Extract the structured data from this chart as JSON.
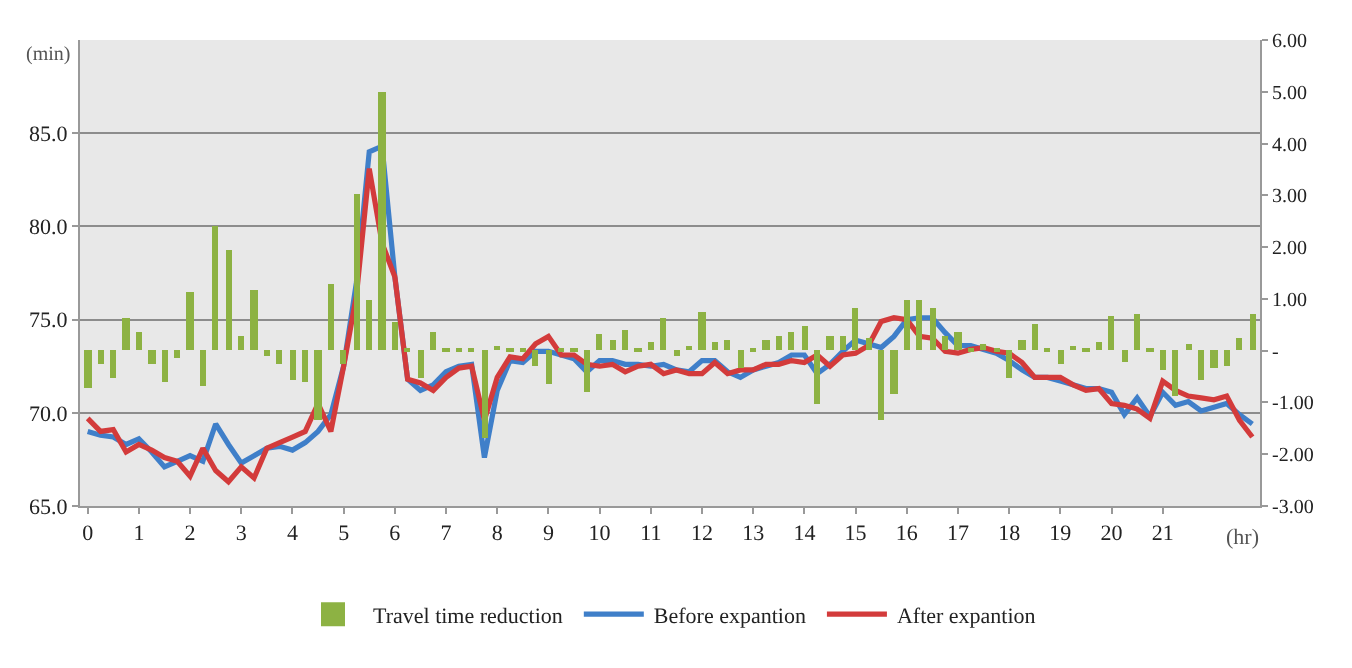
{
  "chart_data": {
    "type": "line",
    "xlabel": "(hr)",
    "ylabel": "(min)",
    "x": [
      0,
      0.25,
      0.5,
      0.75,
      1,
      1.25,
      1.5,
      1.75,
      2,
      2.25,
      2.5,
      2.75,
      3,
      3.25,
      3.5,
      3.75,
      4,
      4.25,
      4.5,
      4.75,
      5,
      5.25,
      5.5,
      5.75,
      6,
      6.25,
      6.5,
      6.75,
      7,
      7.25,
      7.5,
      7.75,
      8,
      8.25,
      8.5,
      8.75,
      9,
      9.25,
      9.5,
      9.75,
      10,
      10.25,
      10.5,
      10.75,
      11,
      11.25,
      11.5,
      11.75,
      12,
      12.25,
      12.5,
      12.75,
      13,
      13.25,
      13.5,
      13.75,
      14,
      14.25,
      14.5,
      14.75,
      15,
      15.25,
      15.5,
      15.75,
      16,
      16.25,
      16.5,
      16.75,
      17,
      17.25,
      17.5,
      17.75,
      18,
      18.25,
      18.5,
      18.75,
      19,
      19.25,
      19.5,
      19.75,
      20,
      20.25,
      20.5,
      20.75,
      21,
      21.25,
      21.5,
      21.75,
      22,
      22.25,
      22.5,
      22.75
    ],
    "series": [
      {
        "name": "Travel time reduction",
        "type": "bar",
        "axis": "y2",
        "color": "#8db243",
        "values": [
          -0.73,
          -0.25,
          -0.52,
          0.62,
          0.35,
          -0.27,
          -0.6,
          -0.14,
          1.13,
          -0.67,
          2.42,
          1.94,
          0.29,
          1.18,
          -0.09,
          -0.25,
          -0.56,
          -0.6,
          -1.33,
          1.28,
          -0.27,
          3.03,
          0.96,
          4.98,
          0.54,
          0.02,
          -0.52,
          0.37,
          0.02,
          0.02,
          0.02,
          -1.68,
          0.08,
          0.02,
          0.02,
          -0.29,
          -0.64,
          0.02,
          0.02,
          -0.79,
          0.31,
          0.21,
          0.41,
          0.02,
          0.15,
          0.62,
          -0.12,
          0.09,
          0.75,
          0.15,
          0.2,
          -0.35,
          0.06,
          0.22,
          0.29,
          0.37,
          0.49,
          -1.04,
          0.28,
          0.28,
          0.81,
          0.25,
          -1.35,
          -0.83,
          0.98,
          0.98,
          0.81,
          0.27,
          0.35,
          0.05,
          0.12,
          0.05,
          -0.52,
          0.2,
          0.52,
          0.02,
          -0.27,
          0.08,
          0.02,
          0.17,
          0.66,
          -0.23,
          0.7,
          0.02,
          -0.38,
          -0.87,
          0.12,
          -0.58,
          -0.35,
          -0.29,
          0.23,
          0.72
        ]
      },
      {
        "name": "Before expantion",
        "color": "#3f7fc9",
        "values": [
          69.0,
          68.8,
          68.7,
          68.3,
          68.6,
          67.9,
          67.1,
          67.4,
          67.7,
          67.4,
          69.4,
          68.3,
          67.3,
          67.7,
          68.1,
          68.2,
          68.0,
          68.4,
          69.0,
          69.9,
          72.5,
          77.0,
          84.0,
          84.3,
          77.3,
          71.8,
          71.2,
          71.5,
          72.2,
          72.5,
          72.6,
          67.6,
          71.2,
          72.8,
          72.7,
          73.3,
          73.3,
          73.1,
          72.9,
          72.2,
          72.8,
          72.8,
          72.6,
          72.6,
          72.5,
          72.6,
          72.3,
          72.2,
          72.8,
          72.8,
          72.2,
          71.9,
          72.3,
          72.5,
          72.7,
          73.1,
          73.1,
          72.1,
          72.6,
          73.3,
          73.9,
          73.7,
          73.5,
          74.1,
          75.0,
          75.1,
          75.1,
          74.3,
          73.6,
          73.6,
          73.4,
          73.2,
          72.8,
          72.3,
          71.9,
          71.9,
          71.7,
          71.5,
          71.3,
          71.3,
          71.1,
          69.9,
          70.8,
          69.8,
          71.1,
          70.4,
          70.6,
          70.1,
          70.3,
          70.5,
          69.9,
          69.4
        ]
      },
      {
        "name": "After expantion",
        "color": "#d33b3b",
        "values": [
          69.7,
          69.0,
          69.1,
          67.9,
          68.3,
          68.0,
          67.6,
          67.4,
          66.6,
          68.1,
          66.9,
          66.3,
          67.1,
          66.5,
          68.1,
          68.4,
          68.7,
          69.0,
          70.5,
          69.0,
          72.5,
          76.3,
          83.1,
          79.1,
          77.3,
          71.8,
          71.6,
          71.2,
          71.9,
          72.4,
          72.5,
          69.6,
          71.9,
          73.0,
          72.9,
          73.7,
          74.1,
          73.1,
          73.1,
          72.6,
          72.5,
          72.6,
          72.2,
          72.5,
          72.6,
          72.1,
          72.3,
          72.1,
          72.1,
          72.7,
          72.1,
          72.3,
          72.3,
          72.6,
          72.6,
          72.8,
          72.7,
          73.1,
          72.5,
          73.1,
          73.2,
          73.6,
          74.9,
          75.1,
          75.0,
          74.1,
          74.0,
          73.3,
          73.2,
          73.4,
          73.5,
          73.3,
          73.2,
          72.7,
          71.9,
          71.9,
          71.9,
          71.5,
          71.2,
          71.3,
          70.5,
          70.4,
          70.2,
          69.7,
          71.7,
          71.2,
          70.9,
          70.8,
          70.7,
          70.9,
          69.6,
          68.7
        ]
      }
    ],
    "xlim": [
      -0.15,
      22.9
    ],
    "xticks": [
      0,
      1,
      2,
      3,
      4,
      5,
      6,
      7,
      8,
      9,
      10,
      11,
      12,
      13,
      14,
      15,
      16,
      17,
      18,
      19,
      20,
      21
    ],
    "ylim": [
      65,
      90
    ],
    "yticks": [
      {
        "value": 65,
        "label": "65.0"
      },
      {
        "value": 70,
        "label": "70.0"
      },
      {
        "value": 75,
        "label": "75.0"
      },
      {
        "value": 80,
        "label": "80.0"
      },
      {
        "value": 85,
        "label": "85.0"
      }
    ],
    "y2lim": [
      -3,
      6
    ],
    "y2ticks": [
      {
        "value": -3,
        "label": "-3.00"
      },
      {
        "value": -2,
        "label": "-2.00"
      },
      {
        "value": -1,
        "label": "-1.00"
      },
      {
        "value": 0,
        "label": "-"
      },
      {
        "value": 1,
        "label": "1.00"
      },
      {
        "value": 2,
        "label": "2.00"
      },
      {
        "value": 3,
        "label": "3.00"
      },
      {
        "value": 4,
        "label": "4.00"
      },
      {
        "value": 5,
        "label": "5.00"
      },
      {
        "value": 6,
        "label": "6.00"
      }
    ],
    "grid": "y",
    "legend": "bottom",
    "marker": "none",
    "line_style": "solid"
  }
}
